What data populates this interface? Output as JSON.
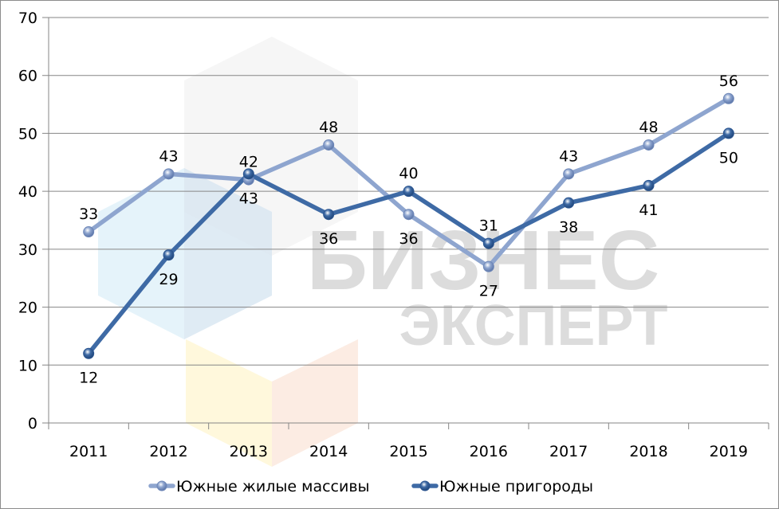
{
  "chart_data": {
    "type": "line",
    "title": "",
    "xlabel": "",
    "ylabel": "",
    "categories": [
      "2011",
      "2012",
      "2013",
      "2014",
      "2015",
      "2016",
      "2017",
      "2018",
      "2019"
    ],
    "series": [
      {
        "name": "Южные жилые массивы",
        "values": [
          33,
          43,
          42,
          48,
          36,
          27,
          43,
          48,
          56
        ],
        "color": "#8ea5cf",
        "label_position": [
          "above",
          "above",
          "above",
          "above",
          "below",
          "below",
          "above",
          "above",
          "above"
        ]
      },
      {
        "name": "Южные пригороды",
        "values": [
          12,
          29,
          43,
          36,
          40,
          31,
          38,
          41,
          50
        ],
        "color": "#3e6aa5",
        "label_position": [
          "below",
          "below",
          "below",
          "below",
          "above",
          "above",
          "below",
          "below",
          "below"
        ]
      }
    ],
    "ylim": [
      0,
      70
    ],
    "yticks": [
      0,
      10,
      20,
      30,
      40,
      50,
      60,
      70
    ],
    "grid": true,
    "legend_position": "bottom",
    "data_labels": true
  },
  "watermark": {
    "line1": "БИЗНЕС",
    "line2": "ЭКСПЕРТ"
  }
}
